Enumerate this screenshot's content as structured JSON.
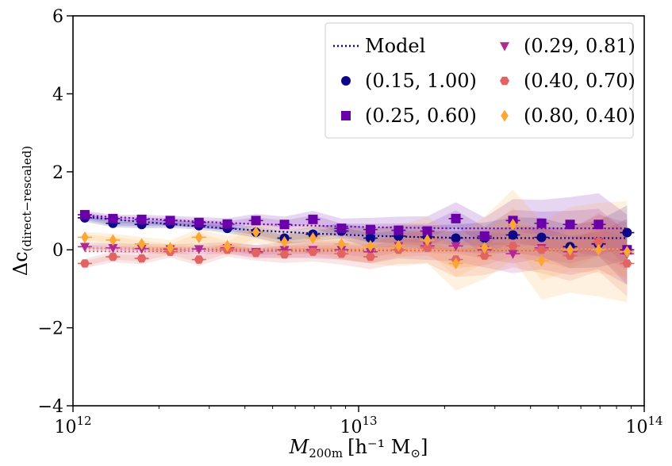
{
  "chart_data": {
    "type": "scatter",
    "title": "",
    "xscale": "log",
    "xlim": [
      1000000000000.0,
      100000000000000.0
    ],
    "ylim": [
      -4,
      6
    ],
    "xlabel": {
      "main": "M",
      "sub": "200m",
      "units": "[h⁻¹ M",
      "sun": "⊙",
      "close": "]"
    },
    "ylabel": {
      "main": "Δc",
      "sub": "(direct−rescaled)"
    },
    "x_ticks": [
      {
        "value": 1000000000000.0,
        "base": "10",
        "exp": "12"
      },
      {
        "value": 10000000000000.0,
        "base": "10",
        "exp": "13"
      },
      {
        "value": 100000000000000.0,
        "base": "10",
        "exp": "14"
      }
    ],
    "y_ticks": [
      {
        "value": -4,
        "label": "−4"
      },
      {
        "value": -2,
        "label": "−2"
      },
      {
        "value": 0,
        "label": "0"
      },
      {
        "value": 2,
        "label": "2"
      },
      {
        "value": 4,
        "label": "4"
      },
      {
        "value": 6,
        "label": "6"
      }
    ],
    "legend": {
      "position": "top-right",
      "columns": 2,
      "entries": [
        {
          "label": "Model",
          "kind": "line",
          "series": "model"
        },
        {
          "label": "(0.15, 1.00)",
          "kind": "marker",
          "series": "s1"
        },
        {
          "label": "(0.25, 0.60)",
          "kind": "marker",
          "series": "s2"
        },
        {
          "label": "(0.29, 0.81)",
          "kind": "marker",
          "series": "s3"
        },
        {
          "label": "(0.40, 0.70)",
          "kind": "marker",
          "series": "s4"
        },
        {
          "label": "(0.80, 0.40)",
          "kind": "marker",
          "series": "s5"
        }
      ]
    },
    "x": [
      1100000000000.0,
      1380000000000.0,
      1740000000000.0,
      2190000000000.0,
      2760000000000.0,
      3470000000000.0,
      4370000000000.0,
      5500000000000.0,
      6920000000000.0,
      8710000000000.0,
      11000000000000.0,
      13800000000000.0,
      17400000000000.0,
      21900000000000.0,
      27600000000000.0,
      34700000000000.0,
      43700000000000.0,
      55000000000000.0,
      69200000000000.0,
      87100000000000.0
    ],
    "series": [
      {
        "id": "s1",
        "name": "(0.15, 1.00)",
        "color": "#0d0887",
        "marker": "circle",
        "y": [
          0.82,
          0.68,
          0.65,
          0.66,
          0.62,
          0.55,
          0.45,
          0.3,
          0.4,
          0.48,
          0.3,
          0.35,
          0.33,
          0.3,
          0.3,
          0.38,
          0.32,
          0.08,
          0.15,
          0.44
        ],
        "err": [
          0.1,
          0.1,
          0.1,
          0.1,
          0.1,
          0.12,
          0.14,
          0.16,
          0.18,
          0.2,
          0.25,
          0.28,
          0.3,
          0.35,
          0.4,
          0.45,
          0.5,
          0.55,
          0.6,
          0.7
        ]
      },
      {
        "id": "s2",
        "name": "(0.25, 0.60)",
        "color": "#6a00a8",
        "marker": "square",
        "y": [
          0.9,
          0.8,
          0.78,
          0.75,
          0.7,
          0.66,
          0.75,
          0.65,
          0.78,
          0.55,
          0.52,
          0.5,
          0.48,
          0.8,
          0.35,
          0.75,
          0.68,
          0.65,
          0.65,
          0.0
        ],
        "err": [
          0.1,
          0.1,
          0.12,
          0.12,
          0.14,
          0.15,
          0.17,
          0.2,
          0.22,
          0.25,
          0.3,
          0.35,
          0.38,
          0.42,
          0.48,
          0.55,
          0.6,
          0.7,
          0.8,
          0.9
        ]
      },
      {
        "id": "s3",
        "name": "(0.29, 0.81)",
        "color": "#b12a90",
        "marker": "triangle-down",
        "y": [
          0.08,
          0.05,
          0.03,
          0.02,
          0.02,
          0.05,
          -0.05,
          0.0,
          0.0,
          0.0,
          -0.05,
          0.1,
          0.1,
          0.1,
          0.0,
          -0.1,
          0.05,
          -0.05,
          0.2,
          -0.1
        ],
        "err": [
          0.1,
          0.12,
          0.12,
          0.12,
          0.14,
          0.15,
          0.17,
          0.2,
          0.22,
          0.25,
          0.3,
          0.32,
          0.36,
          0.4,
          0.45,
          0.5,
          0.55,
          0.6,
          0.7,
          0.8
        ]
      },
      {
        "id": "s4",
        "name": "(0.40, 0.70)",
        "color": "#e16462",
        "marker": "hexagon",
        "y": [
          -0.35,
          -0.18,
          -0.22,
          -0.05,
          -0.25,
          0.0,
          -0.08,
          -0.12,
          -0.05,
          -0.1,
          -0.18,
          0.0,
          0.05,
          -0.25,
          -0.15,
          0.1,
          0.0,
          -0.15,
          0.2,
          -0.35
        ],
        "err": [
          0.12,
          0.14,
          0.15,
          0.15,
          0.16,
          0.18,
          0.2,
          0.22,
          0.25,
          0.28,
          0.32,
          0.36,
          0.4,
          0.45,
          0.5,
          0.55,
          0.6,
          0.65,
          0.75,
          0.85
        ]
      },
      {
        "id": "s5",
        "name": "(0.80, 0.40)",
        "color": "#fca636",
        "marker": "diamond",
        "y": [
          0.32,
          0.25,
          0.15,
          0.05,
          0.32,
          0.1,
          0.45,
          0.2,
          0.3,
          0.15,
          0.1,
          0.1,
          0.25,
          -0.35,
          0.05,
          0.65,
          -0.28,
          0.0,
          0.0,
          -0.05
        ],
        "err": [
          0.14,
          0.16,
          0.18,
          0.2,
          0.22,
          0.25,
          0.28,
          0.32,
          0.36,
          0.4,
          0.45,
          0.52,
          0.6,
          0.7,
          0.8,
          0.9,
          1.0,
          1.1,
          1.2,
          1.3
        ]
      }
    ],
    "model": [
      {
        "id": "s1",
        "color": "#0d0887",
        "y": [
          0.84,
          0.78,
          0.72,
          0.66,
          0.6,
          0.55,
          0.5,
          0.46,
          0.42,
          0.39,
          0.36,
          0.34,
          0.32,
          0.31,
          0.3,
          0.3,
          0.3,
          0.3,
          0.3,
          0.3
        ]
      },
      {
        "id": "s2",
        "color": "#6a00a8",
        "y": [
          0.88,
          0.84,
          0.8,
          0.76,
          0.72,
          0.69,
          0.66,
          0.64,
          0.62,
          0.6,
          0.58,
          0.57,
          0.56,
          0.55,
          0.55,
          0.55,
          0.55,
          0.55,
          0.55,
          0.55
        ]
      },
      {
        "id": "s3",
        "color": "#b12a90",
        "y": [
          0.04,
          0.04,
          0.03,
          0.03,
          0.03,
          0.02,
          0.02,
          0.02,
          0.02,
          0.02,
          0.02,
          0.02,
          0.02,
          0.02,
          0.02,
          0.02,
          0.02,
          0.02,
          0.02,
          0.02
        ]
      },
      {
        "id": "s4",
        "color": "#e16462",
        "y": [
          -0.04,
          -0.04,
          -0.04,
          -0.03,
          -0.03,
          -0.03,
          -0.03,
          -0.03,
          -0.03,
          -0.03,
          -0.02,
          -0.02,
          -0.02,
          -0.02,
          -0.02,
          -0.02,
          -0.02,
          -0.02,
          -0.02,
          -0.02
        ]
      },
      {
        "id": "s5",
        "color": "#fca636",
        "y": [
          0.05,
          0.05,
          0.04,
          0.04,
          0.04,
          0.04,
          0.03,
          0.03,
          0.03,
          0.03,
          0.03,
          0.02,
          0.02,
          0.02,
          0.02,
          0.02,
          0.02,
          0.02,
          0.02,
          0.02
        ]
      }
    ]
  }
}
